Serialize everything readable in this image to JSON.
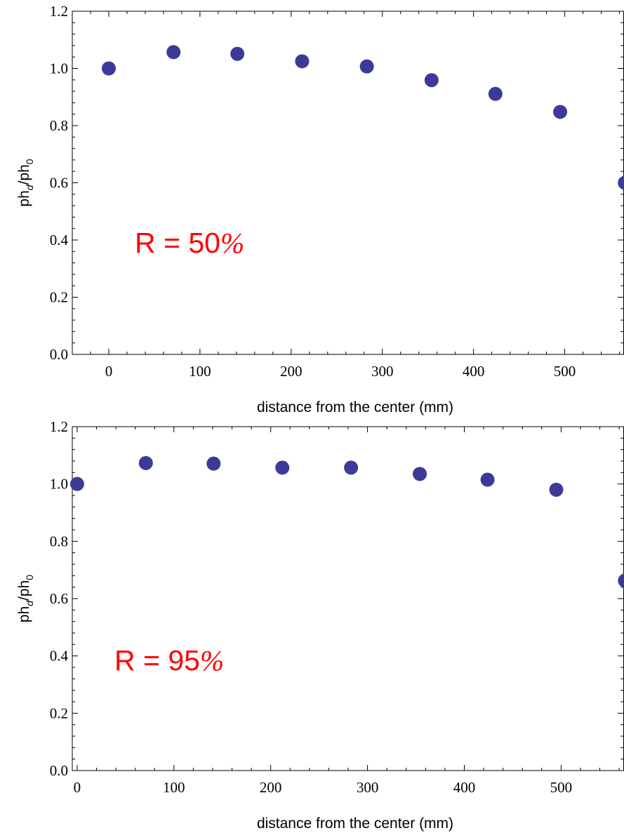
{
  "chart_data": [
    {
      "type": "scatter",
      "xlabel": "distance from the center (mm)",
      "ylabel": {
        "base1": "ph",
        "sub1": "d",
        "sep": "/ph",
        "sub2": "0"
      },
      "xlim": [
        -40,
        565
      ],
      "ylim": [
        0,
        1.2
      ],
      "xticks": [
        0,
        100,
        200,
        300,
        400,
        500
      ],
      "xtick_labels": [
        "0",
        "100",
        "200",
        "300",
        "400",
        "500"
      ],
      "yticks": [
        0.0,
        0.2,
        0.4,
        0.6,
        0.8,
        1.0,
        1.2
      ],
      "ytick_labels": [
        "0.0",
        "0.2",
        "0.4",
        "0.6",
        "0.8",
        "1.0",
        "1.2"
      ],
      "annotation": {
        "main": "R = 50",
        "pct": "%"
      },
      "marker_color": "#3b3b97",
      "annotation_color": "#ff0000",
      "grid": false,
      "series": [
        {
          "x": [
            0,
            71,
            141,
            212,
            283,
            354,
            424,
            495,
            566
          ],
          "y": [
            1.0,
            1.057,
            1.051,
            1.025,
            1.007,
            0.959,
            0.911,
            0.848,
            0.6
          ]
        }
      ]
    },
    {
      "type": "scatter",
      "xlabel": "distance from the center (mm)",
      "ylabel": {
        "base1": "ph",
        "sub1": "d",
        "sep": "/ph",
        "sub2": "0"
      },
      "xlim": [
        -5,
        565
      ],
      "ylim": [
        0,
        1.2
      ],
      "xticks": [
        0,
        100,
        200,
        300,
        400,
        500
      ],
      "xtick_labels": [
        "0",
        "100",
        "200",
        "300",
        "400",
        "500"
      ],
      "yticks": [
        0.0,
        0.2,
        0.4,
        0.6,
        0.8,
        1.0,
        1.2
      ],
      "ytick_labels": [
        "0.0",
        "0.2",
        "0.4",
        "0.6",
        "0.8",
        "1.0",
        "1.2"
      ],
      "annotation": {
        "main": "R = 95",
        "pct": "%"
      },
      "marker_color": "#3b3b97",
      "annotation_color": "#ff0000",
      "grid": false,
      "series": [
        {
          "x": [
            0,
            71,
            141,
            212,
            283,
            354,
            424,
            495,
            566
          ],
          "y": [
            1.0,
            1.073,
            1.071,
            1.057,
            1.057,
            1.035,
            1.015,
            0.98,
            0.663
          ]
        }
      ]
    }
  ]
}
